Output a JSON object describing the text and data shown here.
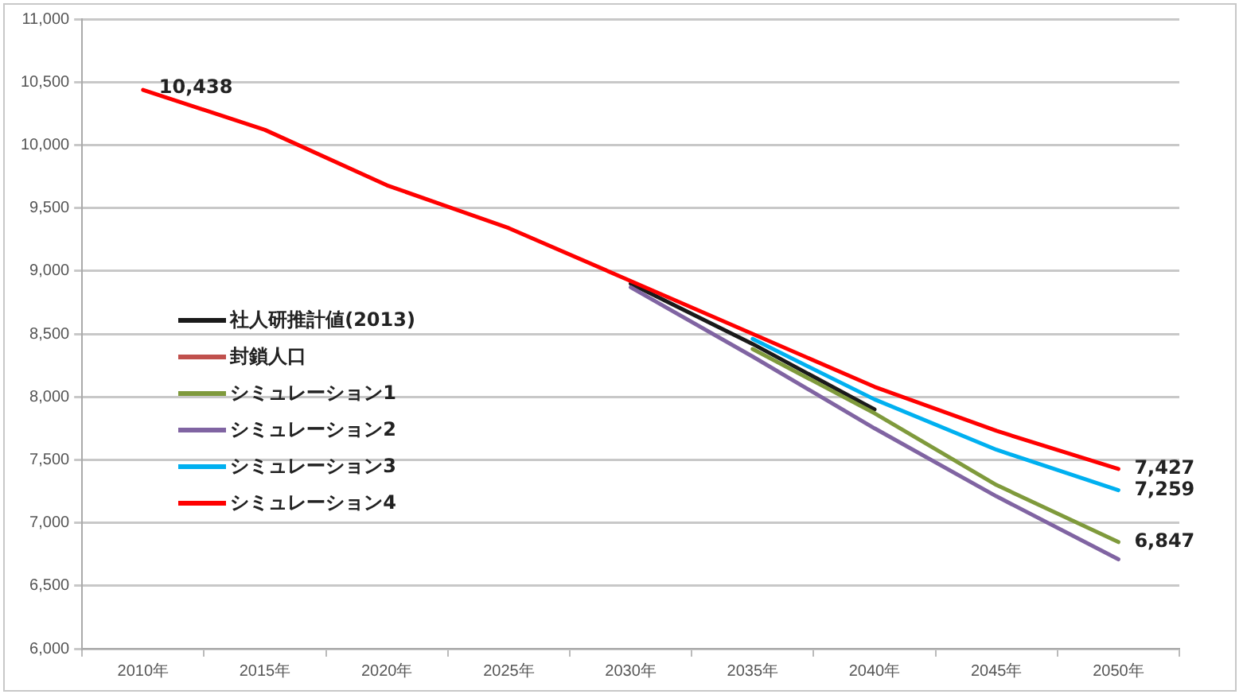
{
  "chart_data": {
    "type": "line",
    "categories": [
      "2010年",
      "2015年",
      "2020年",
      "2025年",
      "2030年",
      "2035年",
      "2040年",
      "2045年",
      "2050年"
    ],
    "series": [
      {
        "name": "社人研推計値(2013)",
        "color": "#1a1a1a",
        "values": [
          null,
          null,
          null,
          null,
          8900,
          8420,
          7900,
          null,
          null
        ]
      },
      {
        "name": "封鎖人口",
        "color": "#c0504d",
        "values": [
          null,
          null,
          null,
          null,
          null,
          null,
          null,
          null,
          null
        ]
      },
      {
        "name": "シミュレーション1",
        "color": "#7f9a3c",
        "values": [
          null,
          null,
          null,
          null,
          null,
          8380,
          7870,
          7300,
          6847
        ]
      },
      {
        "name": "シミュレーション2",
        "color": "#8064a2",
        "values": [
          null,
          null,
          null,
          null,
          8870,
          8320,
          7750,
          7210,
          6710
        ]
      },
      {
        "name": "シミュレーション3",
        "color": "#00b0f0",
        "values": [
          null,
          null,
          null,
          null,
          null,
          8460,
          7980,
          7580,
          7259
        ]
      },
      {
        "name": "シミュレーション4",
        "color": "#ff0000",
        "values": [
          10438,
          10120,
          9680,
          9340,
          8920,
          8500,
          8080,
          7730,
          7427
        ]
      }
    ],
    "ylim": [
      6000,
      11000
    ],
    "yticks": [
      {
        "value": 6000,
        "label": "6,000"
      },
      {
        "value": 6500,
        "label": "6,500"
      },
      {
        "value": 7000,
        "label": "7,000"
      },
      {
        "value": 7500,
        "label": "7,500"
      },
      {
        "value": 8000,
        "label": "8,000"
      },
      {
        "value": 8500,
        "label": "8,500"
      },
      {
        "value": 9000,
        "label": "9,000"
      },
      {
        "value": 9500,
        "label": "9,500"
      },
      {
        "value": 10000,
        "label": "10,000"
      },
      {
        "value": 10500,
        "label": "10,500"
      },
      {
        "value": 11000,
        "label": "11,000"
      }
    ],
    "grid": "y",
    "legend": "left",
    "marker": "none",
    "line_style": "solid",
    "annotations": [
      {
        "text": "10,438",
        "x": "2010年",
        "y": 10438
      },
      {
        "text": "7,427",
        "x": "2050年",
        "y": 7427
      },
      {
        "text": "7,259",
        "x": "2050年",
        "y": 7259
      },
      {
        "text": "6,847",
        "x": "2050年",
        "y": 6847
      }
    ]
  }
}
